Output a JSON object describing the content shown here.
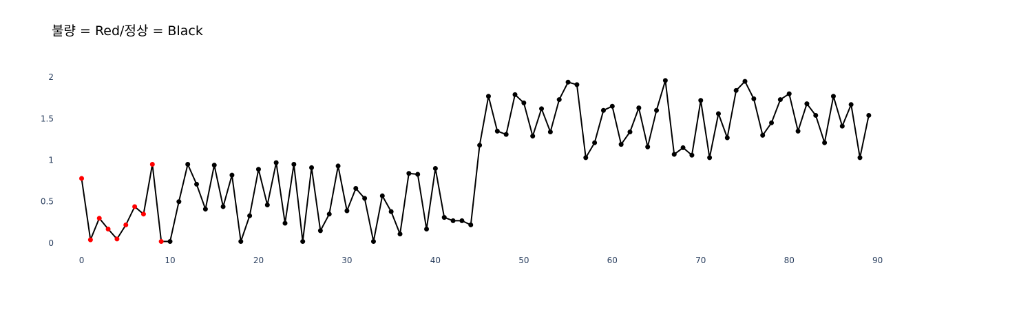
{
  "chart_data": {
    "type": "line",
    "title": "불량 = Red/정상 = Black",
    "xlabel": "",
    "ylabel": "",
    "xlim": [
      -3,
      101
    ],
    "ylim": [
      -0.1,
      2.1
    ],
    "x_ticks": [
      0,
      10,
      20,
      30,
      40,
      50,
      60,
      70,
      80,
      90
    ],
    "y_ticks": [
      0,
      0.5,
      1,
      1.5,
      2
    ],
    "y_tick_labels": [
      "0",
      "0.5",
      "1",
      "1.5",
      "2"
    ],
    "grid": false,
    "line_color": "#000000",
    "marker_colors": {
      "defect": "#ff0000",
      "normal": "#000000"
    },
    "x": [
      0,
      1,
      2,
      3,
      4,
      5,
      6,
      7,
      8,
      9,
      10,
      11,
      12,
      13,
      14,
      15,
      16,
      17,
      18,
      19,
      20,
      21,
      22,
      23,
      24,
      25,
      26,
      27,
      28,
      29,
      30,
      31,
      32,
      33,
      34,
      35,
      36,
      37,
      38,
      39,
      40,
      41,
      42,
      43,
      44,
      45,
      46,
      47,
      48,
      49,
      50,
      51,
      52,
      53,
      54,
      55,
      56,
      57,
      58,
      59,
      60,
      61,
      62,
      63,
      64,
      65,
      66,
      67,
      68,
      69,
      70,
      71,
      72,
      73,
      74,
      75,
      76,
      77,
      78,
      79,
      80,
      81,
      82,
      83,
      84,
      85,
      86,
      87,
      88,
      89
    ],
    "y": [
      0.78,
      0.04,
      0.3,
      0.17,
      0.05,
      0.22,
      0.44,
      0.35,
      0.95,
      0.02,
      0.02,
      0.5,
      0.95,
      0.71,
      0.41,
      0.94,
      0.44,
      0.82,
      0.02,
      0.33,
      0.89,
      0.46,
      0.97,
      0.24,
      0.95,
      0.02,
      0.91,
      0.15,
      0.35,
      0.93,
      0.39,
      0.66,
      0.54,
      0.02,
      0.57,
      0.38,
      0.11,
      0.84,
      0.83,
      0.17,
      0.9,
      0.31,
      0.27,
      0.27,
      0.22,
      1.18,
      1.77,
      1.35,
      1.31,
      1.79,
      1.69,
      1.29,
      1.62,
      1.34,
      1.73,
      1.94,
      1.91,
      1.03,
      1.21,
      1.6,
      1.65,
      1.19,
      1.34,
      1.63,
      1.16,
      1.6,
      1.96,
      1.07,
      1.15,
      1.06,
      1.72,
      1.03,
      1.56,
      1.27,
      1.84,
      1.95,
      1.74,
      1.3,
      1.45,
      1.73,
      1.8,
      1.35,
      1.68,
      1.54,
      1.21,
      1.77,
      1.41,
      1.67,
      1.03,
      1.54
    ],
    "defect_count": 10
  }
}
